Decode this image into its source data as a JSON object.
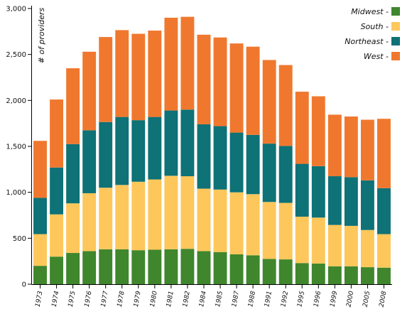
{
  "chart_data": {
    "type": "bar",
    "stacked": true,
    "ylabel": "# of providers",
    "ylim": [
      0,
      3000
    ],
    "yticks": [
      0,
      500,
      1000,
      1500,
      2000,
      2500,
      3000
    ],
    "ytick_labels": [
      "0",
      "500",
      "1,000",
      "1,500",
      "2,000",
      "2,500",
      "3,000"
    ],
    "categories": [
      "1973",
      "1974",
      "1975",
      "1976",
      "1977",
      "1978",
      "1979",
      "1980",
      "1981",
      "1982",
      "1984",
      "1985",
      "1987",
      "1988",
      "1991",
      "1992",
      "1995",
      "1996",
      "1999",
      "2000",
      "2005",
      "2008"
    ],
    "legend_position": "top-right",
    "series": [
      {
        "name": "Midwest",
        "color": "#3f862d",
        "values": [
          200,
          300,
          340,
          360,
          380,
          380,
          370,
          375,
          380,
          385,
          360,
          350,
          325,
          315,
          275,
          270,
          230,
          225,
          195,
          195,
          185,
          180
        ]
      },
      {
        "name": "South",
        "color": "#fec75b",
        "values": [
          345,
          460,
          540,
          630,
          670,
          700,
          745,
          765,
          800,
          790,
          680,
          680,
          675,
          665,
          620,
          615,
          505,
          500,
          450,
          440,
          405,
          365
        ]
      },
      {
        "name": "Northeast",
        "color": "#0e7276",
        "values": [
          395,
          510,
          645,
          685,
          715,
          740,
          670,
          680,
          710,
          725,
          700,
          690,
          650,
          645,
          635,
          620,
          575,
          560,
          530,
          530,
          540,
          500
        ]
      },
      {
        "name": "West",
        "color": "#f0782e",
        "values": [
          620,
          740,
          825,
          855,
          925,
          945,
          940,
          940,
          1010,
          1010,
          975,
          965,
          970,
          960,
          910,
          880,
          785,
          760,
          670,
          660,
          660,
          755
        ]
      }
    ],
    "legend_order": [
      "Midwest",
      "South",
      "Northeast",
      "West"
    ]
  }
}
